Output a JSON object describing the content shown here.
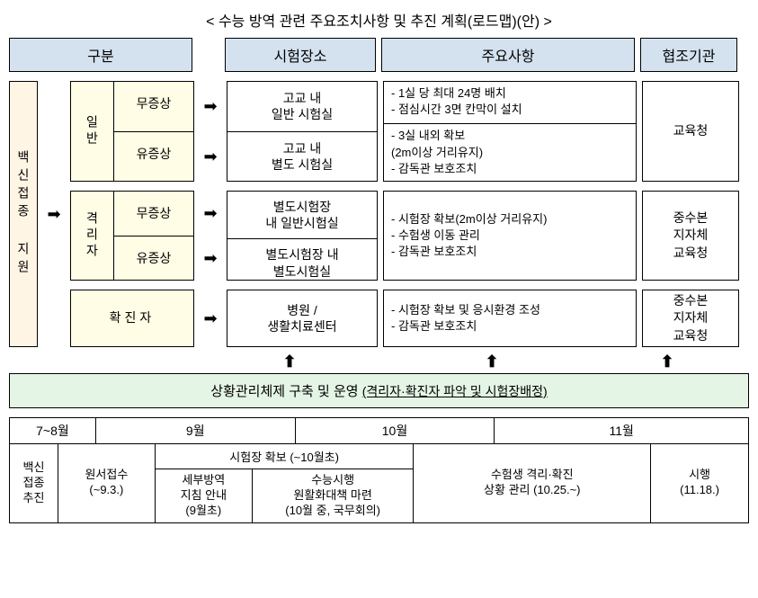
{
  "title": "< 수능 방역 관련 주요조치사항 및 추진 계획(로드맵)(안) >",
  "headers": {
    "category": "구분",
    "place": "시험장소",
    "items": "주요사항",
    "org": "협조기관"
  },
  "vaccine_label": "백신접종 지원",
  "rows": {
    "general": {
      "main": "일반",
      "sub1": "무증상",
      "sub2": "유증상",
      "place1": "고교 내\n일반 시험실",
      "place2": "고교 내\n별도 시험실",
      "items1": "- 1실 당 최대 24명 배치\n- 점심시간 3면 칸막이 설치",
      "items2": "- 3실 내외 확보\n  (2m이상 거리유지)\n- 감독관 보호조치",
      "org": "교육청"
    },
    "quarantine": {
      "main": "격리자",
      "sub1": "무증상",
      "sub2": "유증상",
      "place1": "별도시험장\n내 일반시험실",
      "place2": "별도시험장 내\n별도시험실",
      "items": "- 시험장 확보(2m이상 거리유지)\n- 수험생 이동 관리\n- 감독관 보호조치",
      "org": "중수본\n지자체\n교육청"
    },
    "confirmed": {
      "main": "확진자",
      "place": "병원 /\n생활치료센터",
      "items": "- 시험장 확보 및 응시환경 조성\n- 감독관 보호조치",
      "org": "중수본\n지자체\n교육청"
    }
  },
  "arrows": {
    "right": "➡",
    "up": "⬆"
  },
  "situation": {
    "main": "상황관리체제 구축 및 운영",
    "paren": "(격리자·확진자 파악 및 시험장배정)"
  },
  "timeline": {
    "months": {
      "m1": "7~8월",
      "m2": "9월",
      "m3": "10월",
      "m4": "11월"
    },
    "cells": {
      "c1": "백신\n접종\n추진",
      "c2": "원서접수\n(~9.3.)",
      "nest_top": "시험장 확보 (~10월초)",
      "c3": "세부방역\n지침 안내\n(9월초)",
      "c4": "수능시행\n원활화대책 마련\n(10월 중, 국무회의)",
      "c5": "수험생 격리·확진\n상황 관리 (10.25.~)",
      "c6": "시행\n(11.18.)"
    }
  },
  "colors": {
    "header_bg": "#d4e2f0",
    "yellow_bg": "#fffde5",
    "peach_bg": "#fff5e5",
    "green_bg": "#e5f5e5",
    "border": "#000000"
  },
  "layout": {
    "widths": {
      "category": 204,
      "place": 168,
      "items": 282,
      "org": 108,
      "vaccine": 32,
      "arrow": 24
    },
    "row_heights": {
      "general": 112,
      "quarantine": 100,
      "confirmed": 64
    },
    "timeline_widths": {
      "m1": 96,
      "m2": 222,
      "m3": 222,
      "m4": 282,
      "c1": 54,
      "c2": 108,
      "nest": 288,
      "c5": 204,
      "c6": 108
    }
  }
}
